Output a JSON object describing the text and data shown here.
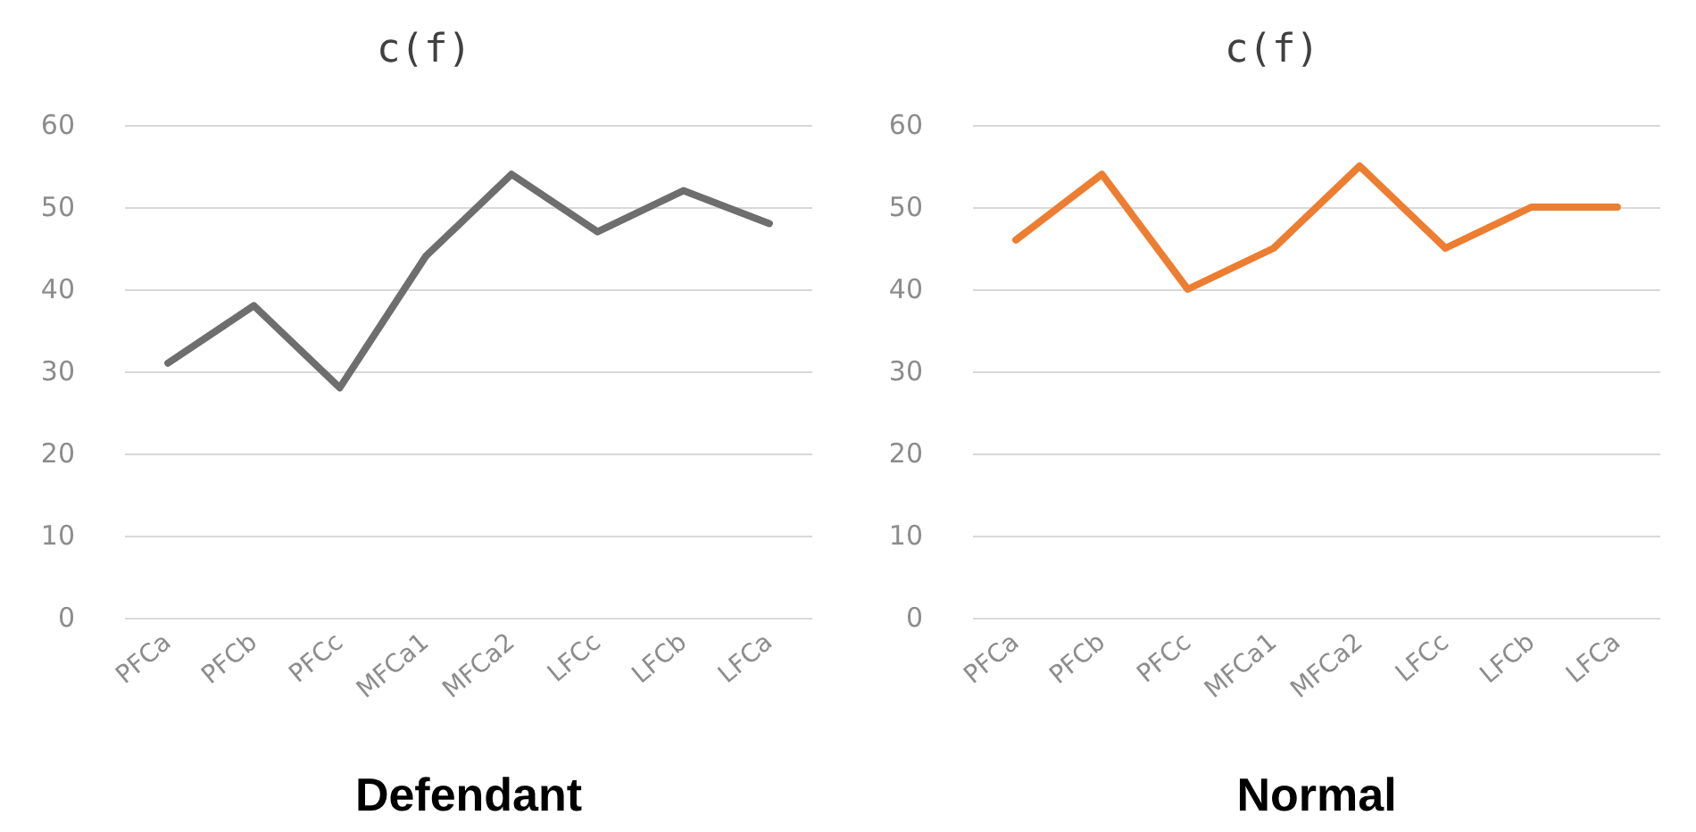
{
  "chart_data": [
    {
      "type": "line",
      "title": "c(f)",
      "xlabel": "Defendant",
      "categories": [
        "PFCa",
        "PFCb",
        "PFCc",
        "MFCa1",
        "MFCa2",
        "LFCc",
        "LFCb",
        "LFCa"
      ],
      "series": [
        {
          "color": "#6e6e6e",
          "values": [
            31,
            38,
            28,
            44,
            54,
            47,
            52,
            48
          ]
        }
      ],
      "ylim": [
        0,
        60
      ],
      "yticks": [
        0,
        10,
        20,
        30,
        40,
        50,
        60
      ],
      "grid": "y",
      "marker": "none",
      "line_style": "solid"
    },
    {
      "type": "line",
      "title": "c(f)",
      "xlabel": "Normal",
      "categories": [
        "PFCa",
        "PFCb",
        "PFCc",
        "MFCa1",
        "MFCa2",
        "LFCc",
        "LFCb",
        "LFCa"
      ],
      "series": [
        {
          "color": "#ed7d31",
          "values": [
            46,
            54,
            40,
            45,
            55,
            45,
            50,
            50
          ]
        }
      ],
      "ylim": [
        0,
        60
      ],
      "yticks": [
        0,
        10,
        20,
        30,
        40,
        50,
        60
      ],
      "grid": "y",
      "marker": "none",
      "line_style": "solid"
    }
  ]
}
